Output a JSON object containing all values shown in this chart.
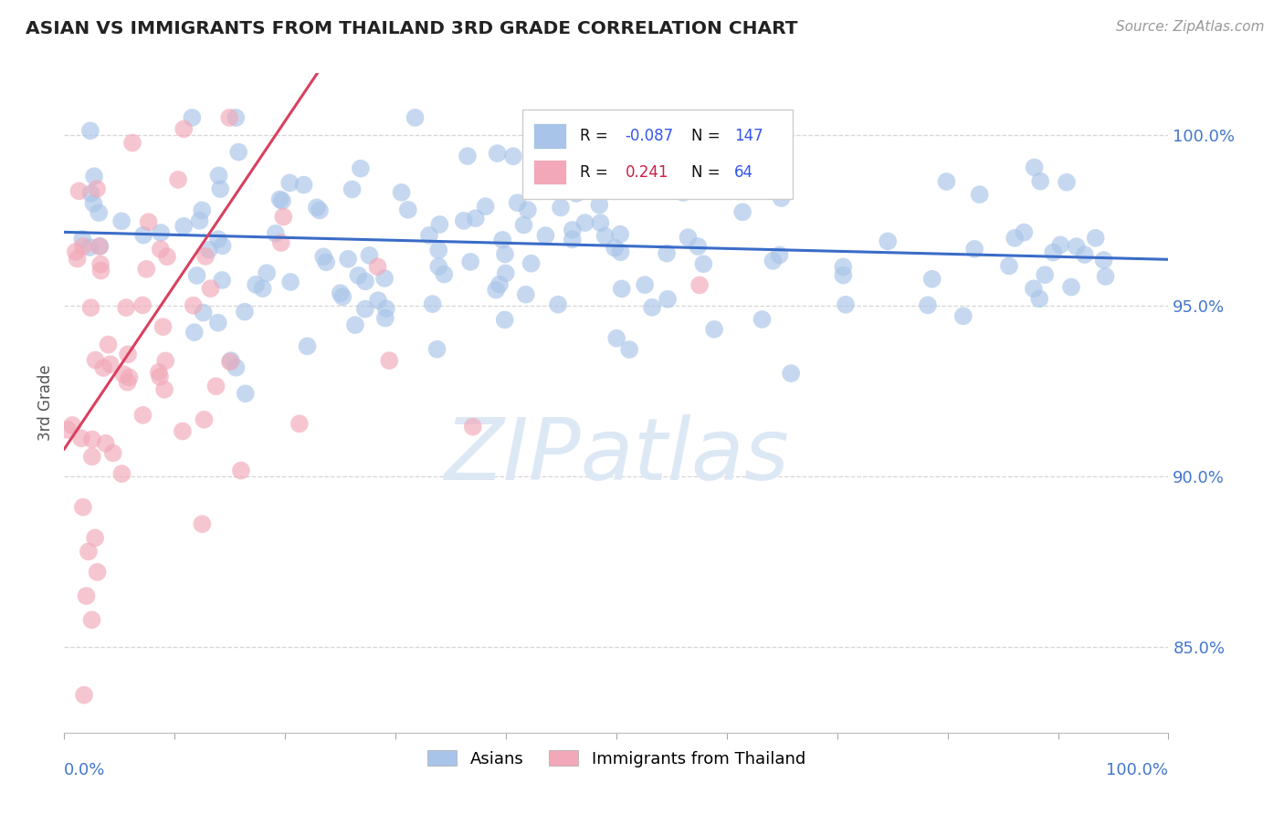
{
  "title": "ASIAN VS IMMIGRANTS FROM THAILAND 3RD GRADE CORRELATION CHART",
  "source": "Source: ZipAtlas.com",
  "ylabel": "3rd Grade",
  "y_tick_labels": [
    "85.0%",
    "90.0%",
    "95.0%",
    "100.0%"
  ],
  "y_tick_values": [
    0.85,
    0.9,
    0.95,
    1.0
  ],
  "xlim": [
    0.0,
    1.0
  ],
  "ylim": [
    0.825,
    1.018
  ],
  "blue_R": -0.087,
  "blue_N": 147,
  "pink_R": 0.241,
  "pink_N": 64,
  "blue_color": "#a8c4e8",
  "pink_color": "#f2a8b8",
  "blue_line_color": "#3a6cc8",
  "pink_line_color": "#d94060",
  "watermark_text": "ZIPatlas",
  "watermark_color": "#dde8f5",
  "background_color": "#ffffff",
  "grid_color": "#cccccc",
  "title_color": "#222222",
  "source_color": "#999999",
  "legend_R_color_blue": "#3355ee",
  "legend_R_color_pink": "#cc2244",
  "legend_N_color": "#3355ee"
}
